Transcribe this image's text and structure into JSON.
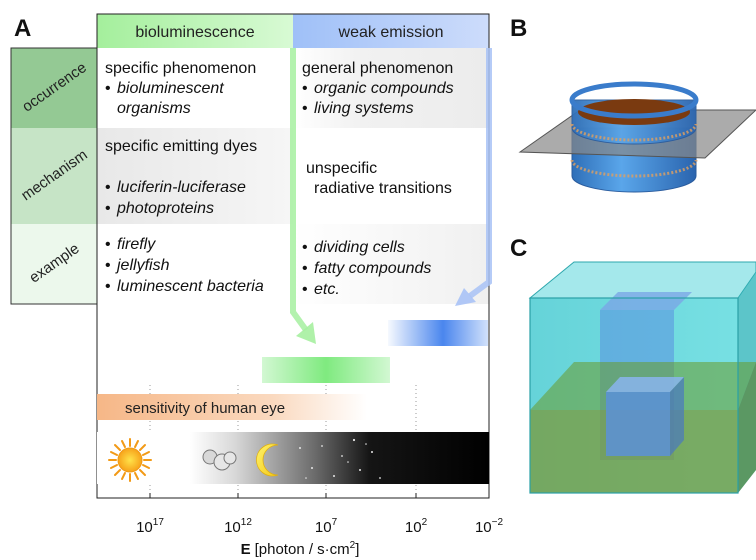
{
  "panel_labels": {
    "a": "A",
    "b": "B",
    "c": "C"
  },
  "columns": {
    "bioluminescence": "bioluminescence",
    "weak_emission": "weak emission"
  },
  "rows": {
    "occurrence": {
      "label": "occurrence",
      "bio_main": "specific phenomenon",
      "bio_items": [
        "bioluminescent",
        "organisms"
      ],
      "weak_main": "general phenomenon",
      "weak_items": [
        "organic compounds",
        "living systems"
      ]
    },
    "mechanism": {
      "label": "mechanism",
      "bio_main": "specific emitting dyes",
      "bio_items": [
        "luciferin-luciferase",
        "photoproteins"
      ],
      "weak_lines": [
        "unspecific",
        "radiative transitions"
      ]
    },
    "example": {
      "label": "example",
      "bio_items": [
        "firefly",
        "jellyfish",
        "luminescent bacteria"
      ],
      "weak_items": [
        "dividing cells",
        "fatty compounds",
        "etc."
      ]
    }
  },
  "bullet": "•",
  "eye_label": "sensitivity of human eye",
  "axis": {
    "base": "10",
    "ticks": [
      {
        "exp": "17"
      },
      {
        "exp": "12"
      },
      {
        "exp": "7"
      },
      {
        "exp": "2"
      },
      {
        "exp": "−2"
      }
    ],
    "label_E": "E",
    "label_unit": "[photon / s·cm",
    "label_sup": "2",
    "label_end": "]"
  },
  "colors": {
    "bio_header": "#a8f0a0",
    "weak_header": "#a8c4f8",
    "occurrence_tab": "#94c994",
    "mechanism_tab": "#c6e4c6",
    "example_tab": "#ecf8ec",
    "eye_bar": "#f5b888",
    "bio_band": "#86ec86",
    "weak_band": "#4a86ee",
    "cyan_box": "#4fd4d8",
    "disk_blue": "#3a8ad8",
    "disk_brown": "#7a3a10"
  },
  "icons": [
    "sun-icon",
    "cloud-icon",
    "moon-icon",
    "stars-icon"
  ]
}
